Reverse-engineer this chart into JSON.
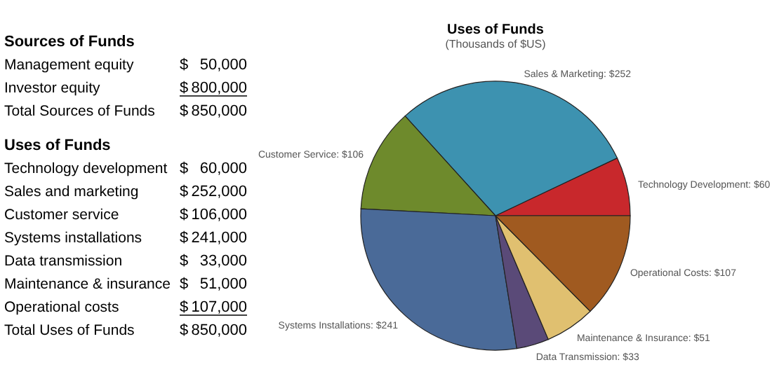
{
  "chart_data": [
    {
      "type": "other",
      "title": "Sources of Funds",
      "categories": [
        "Management equity",
        "Investor equity",
        "Total Sources of Funds"
      ],
      "value_labels": [
        "$ 50,000",
        "$ 800,000",
        "$ 850,000"
      ]
    },
    {
      "type": "other",
      "title": "Uses of Funds",
      "categories": [
        "Technology development",
        "Sales and marketing",
        "Customer service",
        "Systems installations",
        "Data transmission",
        "Maintenance & insurance",
        "Operational costs",
        "Total Uses of Funds"
      ],
      "value_labels": [
        "$ 60,000",
        "$ 252,000",
        "$ 106,000",
        "$ 241,000",
        "$ 33,000",
        "$ 51,000",
        "$ 107,000",
        "$ 850,000"
      ]
    },
    {
      "type": "pie",
      "title": "Uses of Funds",
      "subtitle": "(Thousands of $US)",
      "categories": [
        "Technology Development",
        "Sales & Marketing",
        "Customer Service",
        "Systems Installations",
        "Data Transmission",
        "Maintenance & Insurance",
        "Operational Costs"
      ],
      "values": [
        60,
        252,
        106,
        241,
        33,
        51,
        107
      ],
      "value_labels": [
        "$60",
        "$252",
        "$106",
        "$241",
        "$33",
        "$51",
        "$107"
      ],
      "colors": [
        "#c8282c",
        "#3d92b0",
        "#6e8a2c",
        "#4a6a98",
        "#5a4a78",
        "#e0c070",
        "#a05a20"
      ]
    }
  ]
}
